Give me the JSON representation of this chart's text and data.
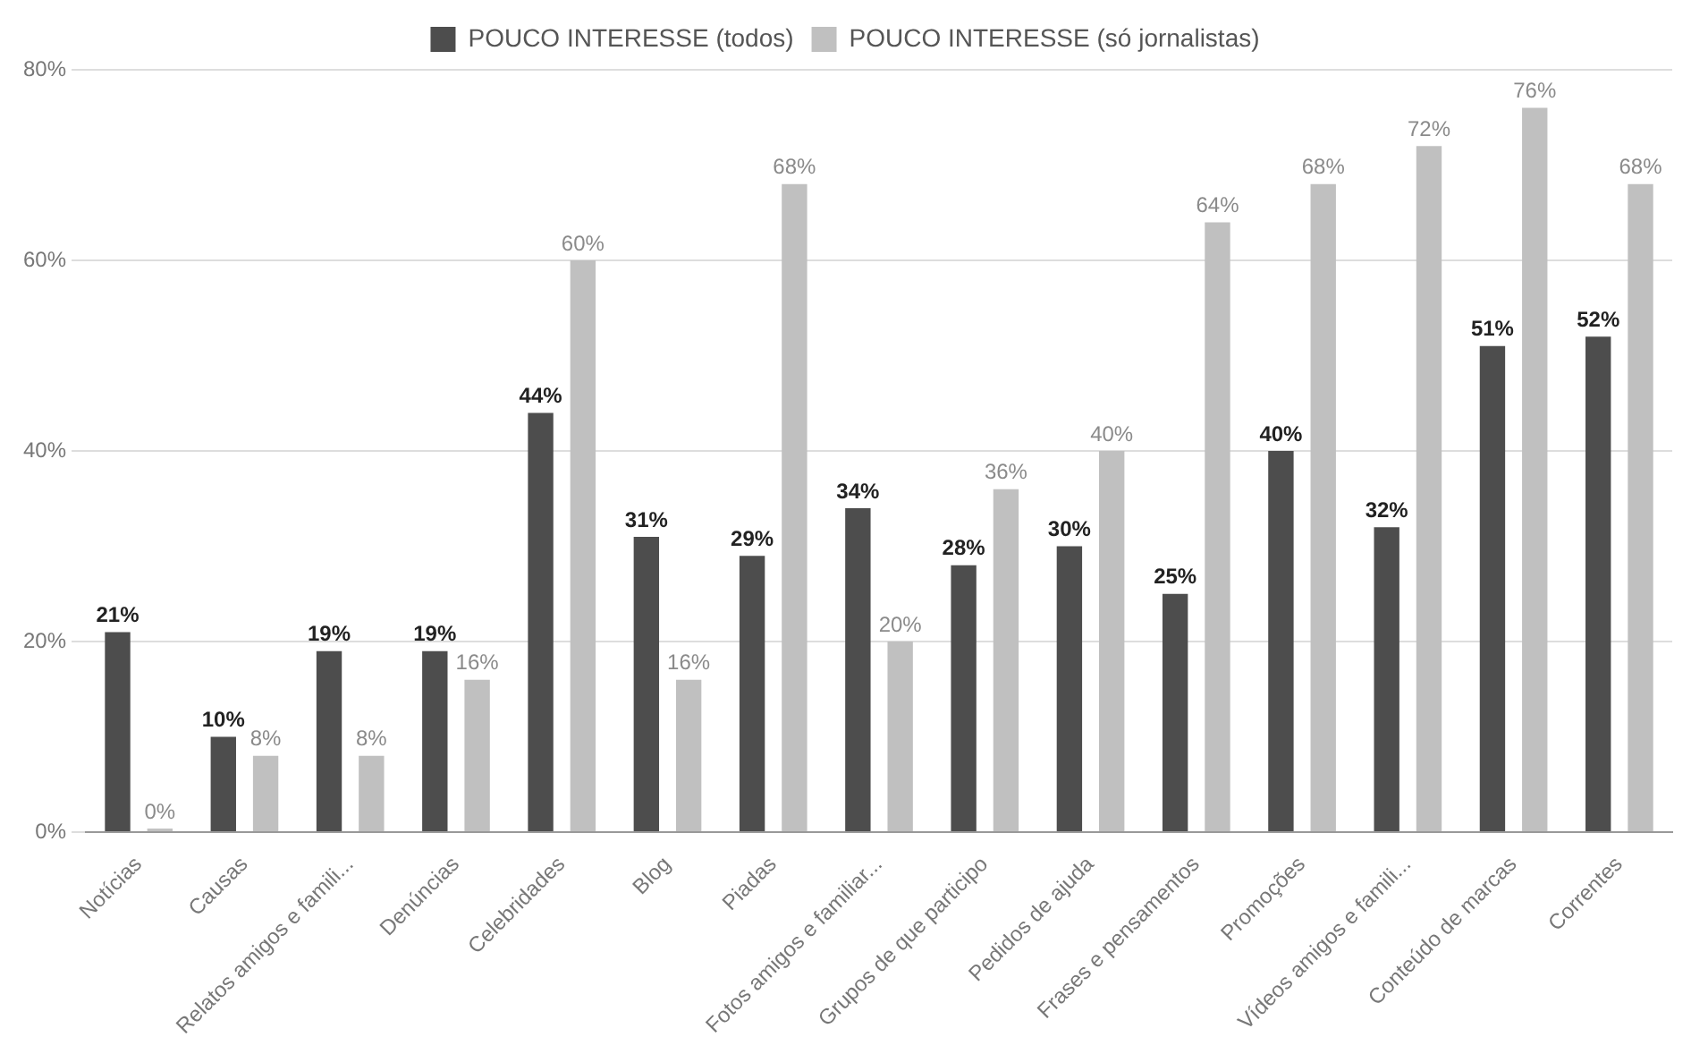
{
  "chart_data": {
    "type": "bar",
    "categories": [
      "Notícias",
      "Causas",
      "Relatos amigos e famili...",
      "Denúncias",
      "Celebridades",
      "Blog",
      "Piadas",
      "Fotos amigos e familiar...",
      "Grupos de que participo",
      "Pedidos de ajuda",
      "Frases e pensamentos",
      "Promoções",
      "Vídeos amigos e famili...",
      "Conteúdo de marcas",
      "Correntes"
    ],
    "series": [
      {
        "name": "POUCO INTERESSE (todos)",
        "color": "#4d4d4d",
        "values": [
          21,
          10,
          19,
          19,
          44,
          31,
          29,
          34,
          28,
          30,
          25,
          40,
          32,
          51,
          52
        ],
        "value_labels": [
          "21%",
          "10%",
          "19%",
          "19%",
          "44%",
          "31%",
          "29%",
          "34%",
          "28%",
          "30%",
          "25%",
          "40%",
          "32%",
          "51%",
          "52%"
        ]
      },
      {
        "name": "POUCO INTERESSE (só jornalistas)",
        "color": "#c0c0c0",
        "values": [
          0,
          8,
          8,
          16,
          60,
          16,
          68,
          20,
          36,
          40,
          64,
          68,
          72,
          76,
          68
        ],
        "value_labels": [
          "0%",
          "8%",
          "8%",
          "16%",
          "60%",
          "16%",
          "68%",
          "20%",
          "36%",
          "40%",
          "64%",
          "68%",
          "72%",
          "76%",
          "68%"
        ]
      }
    ],
    "ylim": [
      0,
      80
    ],
    "yticks": [
      {
        "value": 0,
        "label": "0%"
      },
      {
        "value": 20,
        "label": "20%"
      },
      {
        "value": 40,
        "label": "40%"
      },
      {
        "value": 60,
        "label": "60%"
      },
      {
        "value": 80,
        "label": "80%"
      }
    ],
    "grid": "y",
    "legend": "top"
  }
}
